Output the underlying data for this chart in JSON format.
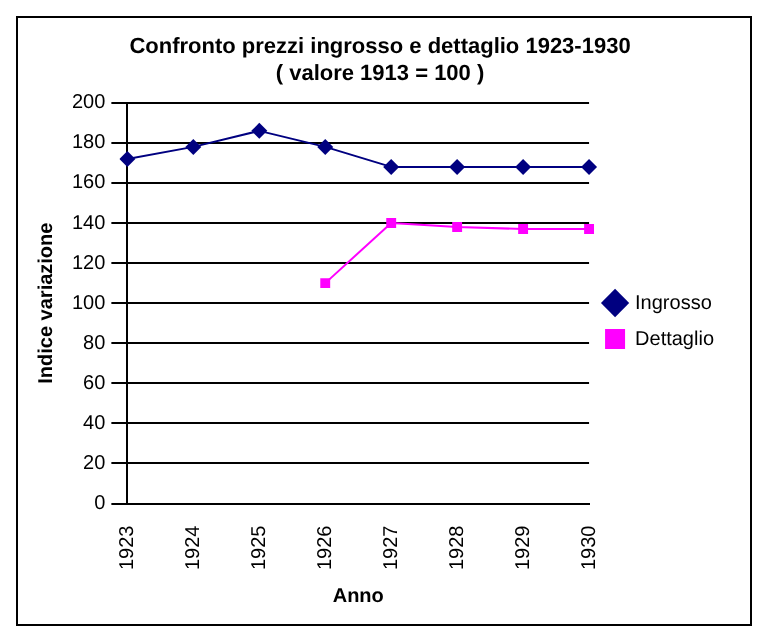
{
  "chart_data": {
    "type": "line",
    "title": [
      "Confronto prezzi ingrosso e dettaglio 1923-1930",
      "( valore 1913 = 100 )"
    ],
    "xlabel": "Anno",
    "ylabel": "Indice variazione",
    "categories": [
      "1923",
      "1924",
      "1925",
      "1926",
      "1927",
      "1928",
      "1929",
      "1930"
    ],
    "series": [
      {
        "name": "Ingrosso",
        "color": "#000080",
        "marker": "diamond",
        "values": [
          172,
          178,
          186,
          178,
          168,
          168,
          168,
          168
        ]
      },
      {
        "name": "Dettaglio",
        "color": "#ff00ff",
        "marker": "square",
        "values": [
          null,
          null,
          null,
          110,
          140,
          138,
          137,
          137
        ]
      }
    ],
    "ylim": [
      0,
      200
    ],
    "yticks": [
      0,
      20,
      40,
      60,
      80,
      100,
      120,
      140,
      160,
      180,
      200
    ],
    "grid": "y",
    "legend": "right"
  }
}
